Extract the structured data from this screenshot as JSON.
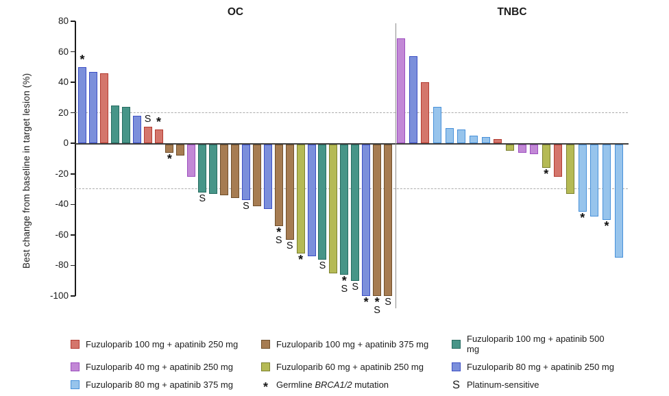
{
  "chart_data": {
    "type": "bar",
    "variant": "waterfall",
    "title": "",
    "xlabel": "",
    "ylabel": "Best change from baseline in target lesion (%)",
    "ylim": [
      -100,
      80
    ],
    "yticks": [
      80,
      60,
      40,
      20,
      0,
      -20,
      -40,
      -60,
      -80,
      -100
    ],
    "reference_lines": [
      20,
      -30
    ],
    "grid": false,
    "legend_position": "bottom",
    "series": {
      "fuz100_apa250": {
        "label": "Fuzuloparib 100 mg + apatinib 250 mg",
        "fill": "#D4766C",
        "stroke": "#B23A30"
      },
      "fuz100_apa375": {
        "label": "Fuzuloparib 100 mg + apatinib 375 mg",
        "fill": "#A67C52",
        "stroke": "#6F4E2A"
      },
      "fuz100_apa500": {
        "label": "Fuzuloparib 100 mg + apatinib 500 mg",
        "fill": "#479588",
        "stroke": "#256B60"
      },
      "fuz40_apa250": {
        "label": "Fuzuloparib 40 mg + apatinib 250 mg",
        "fill": "#C288D6",
        "stroke": "#9C4EBE"
      },
      "fuz60_apa250": {
        "label": "Fuzuloparib 60 mg + apatinib 250 mg",
        "fill": "#B5BA55",
        "stroke": "#7C812F"
      },
      "fuz80_apa250": {
        "label": "Fuzuloparib 80 mg + apatinib 250 mg",
        "fill": "#7B8FDB",
        "stroke": "#3B4EC4"
      },
      "fuz80_apa375": {
        "label": "Fuzuloparib 80 mg + apatinib 375 mg",
        "fill": "#97C4EC",
        "stroke": "#4790D9"
      }
    },
    "legend_order": [
      "fuz100_apa250",
      "fuz100_apa375",
      "fuz100_apa500",
      "fuz40_apa250",
      "fuz60_apa250",
      "fuz80_apa250",
      "fuz80_apa375"
    ],
    "legend_marks": [
      {
        "symbol": "*",
        "label_prefix": "Germline ",
        "label_italic": "BRCA1/2",
        "label_suffix": " mutation"
      },
      {
        "symbol": "S",
        "label_prefix": "",
        "label_italic": "",
        "label_suffix": "Platinum-sensitive"
      }
    ],
    "groups": [
      {
        "label": "OC",
        "bars": [
          {
            "value": 50,
            "series": "fuz80_apa250",
            "marks": [
              "*"
            ]
          },
          {
            "value": 47,
            "series": "fuz80_apa250",
            "marks": []
          },
          {
            "value": 46,
            "series": "fuz100_apa250",
            "marks": []
          },
          {
            "value": 25,
            "series": "fuz100_apa500",
            "marks": []
          },
          {
            "value": 24,
            "series": "fuz100_apa500",
            "marks": []
          },
          {
            "value": 18,
            "series": "fuz80_apa250",
            "marks": []
          },
          {
            "value": 11,
            "series": "fuz100_apa250",
            "marks": [
              "S"
            ]
          },
          {
            "value": 9,
            "series": "fuz100_apa250",
            "marks": [
              "*"
            ]
          },
          {
            "value": -6,
            "series": "fuz100_apa375",
            "marks": [
              "*"
            ]
          },
          {
            "value": -8,
            "series": "fuz100_apa375",
            "marks": []
          },
          {
            "value": -22,
            "series": "fuz40_apa250",
            "marks": []
          },
          {
            "value": -32,
            "series": "fuz100_apa500",
            "marks": [
              "S"
            ]
          },
          {
            "value": -33,
            "series": "fuz100_apa500",
            "marks": []
          },
          {
            "value": -34,
            "series": "fuz100_apa375",
            "marks": []
          },
          {
            "value": -36,
            "series": "fuz100_apa375",
            "marks": []
          },
          {
            "value": -37,
            "series": "fuz80_apa250",
            "marks": [
              "S"
            ]
          },
          {
            "value": -41,
            "series": "fuz100_apa375",
            "marks": []
          },
          {
            "value": -43,
            "series": "fuz80_apa250",
            "marks": []
          },
          {
            "value": -54,
            "series": "fuz100_apa375",
            "marks": [
              "*",
              "S"
            ]
          },
          {
            "value": -63,
            "series": "fuz100_apa375",
            "marks": [
              "S"
            ]
          },
          {
            "value": -72,
            "series": "fuz60_apa250",
            "marks": [
              "*"
            ]
          },
          {
            "value": -74,
            "series": "fuz80_apa250",
            "marks": []
          },
          {
            "value": -76,
            "series": "fuz100_apa500",
            "marks": [
              "S"
            ]
          },
          {
            "value": -85,
            "series": "fuz60_apa250",
            "marks": []
          },
          {
            "value": -86,
            "series": "fuz100_apa500",
            "marks": [
              "*",
              "S"
            ]
          },
          {
            "value": -90,
            "series": "fuz100_apa500",
            "marks": [
              "S"
            ]
          },
          {
            "value": -100,
            "series": "fuz80_apa250",
            "marks": [
              "*"
            ]
          },
          {
            "value": -100,
            "series": "fuz100_apa375",
            "marks": [
              "*",
              "S"
            ]
          },
          {
            "value": -100,
            "series": "fuz100_apa375",
            "marks": [
              "S"
            ]
          }
        ]
      },
      {
        "label": "TNBC",
        "bars": [
          {
            "value": 69,
            "series": "fuz40_apa250",
            "marks": []
          },
          {
            "value": 57,
            "series": "fuz80_apa250",
            "marks": []
          },
          {
            "value": 40,
            "series": "fuz100_apa250",
            "marks": []
          },
          {
            "value": 24,
            "series": "fuz80_apa375",
            "marks": []
          },
          {
            "value": 10,
            "series": "fuz80_apa375",
            "marks": []
          },
          {
            "value": 9,
            "series": "fuz80_apa375",
            "marks": []
          },
          {
            "value": 5,
            "series": "fuz80_apa375",
            "marks": []
          },
          {
            "value": 4,
            "series": "fuz80_apa375",
            "marks": []
          },
          {
            "value": 3,
            "series": "fuz100_apa250",
            "marks": []
          },
          {
            "value": -5,
            "series": "fuz60_apa250",
            "marks": []
          },
          {
            "value": -6,
            "series": "fuz40_apa250",
            "marks": []
          },
          {
            "value": -7,
            "series": "fuz40_apa250",
            "marks": []
          },
          {
            "value": -16,
            "series": "fuz60_apa250",
            "marks": [
              "*"
            ]
          },
          {
            "value": -22,
            "series": "fuz100_apa250",
            "marks": []
          },
          {
            "value": -33,
            "series": "fuz60_apa250",
            "marks": []
          },
          {
            "value": -45,
            "series": "fuz80_apa375",
            "marks": [
              "*"
            ]
          },
          {
            "value": -48,
            "series": "fuz80_apa375",
            "marks": []
          },
          {
            "value": -50,
            "series": "fuz80_apa375",
            "marks": [
              "*"
            ]
          },
          {
            "value": -75,
            "series": "fuz80_apa375",
            "marks": []
          }
        ]
      }
    ]
  }
}
